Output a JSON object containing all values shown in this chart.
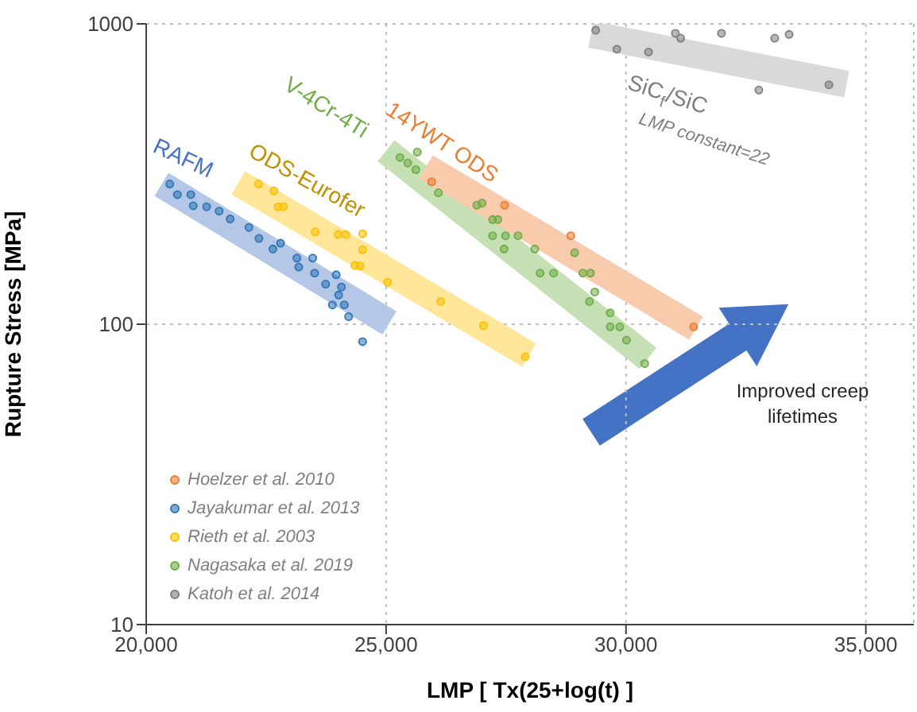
{
  "chart_data": {
    "type": "scatter",
    "xlabel": "LMP [ Tx(25+log(t) ]",
    "ylabel": "Rupture Stress [MPa]",
    "xlim": [
      20000,
      36000
    ],
    "xticks": [
      {
        "value": 20000,
        "label": "20,000"
      },
      {
        "value": 25000,
        "label": "25,000"
      },
      {
        "value": 30000,
        "label": "30,000"
      },
      {
        "value": 35000,
        "label": "35,000"
      }
    ],
    "ylim": [
      10,
      1000
    ],
    "yticks": [
      10,
      100,
      1000
    ],
    "log": "y",
    "grid": true,
    "legend": "bottom left",
    "marker": "circle",
    "series": [
      {
        "type": "line",
        "marker": "none",
        "color": "#b4c7e7",
        "x": [
          20320,
          25070
        ],
        "values": [
          292,
          101
        ]
      },
      {
        "type": "line",
        "marker": "none",
        "color": "#ffe699",
        "x": [
          21920,
          27980
        ],
        "values": [
          296,
          79
        ]
      },
      {
        "type": "line",
        "marker": "none",
        "color": "#c5e0b4",
        "x": [
          25000,
          30460
        ],
        "values": [
          378,
          77
        ]
      },
      {
        "type": "line",
        "marker": "none",
        "color": "#f8cbad",
        "x": [
          25830,
          31460
        ],
        "values": [
          334,
          97
        ]
      },
      {
        "type": "line",
        "marker": "none",
        "color": "#d9d9d9",
        "x": [
          29270,
          34600
        ],
        "values": [
          922,
          630
        ]
      },
      {
        "name": "Hoelzer et al. 2010",
        "color": "#ed7d31",
        "x": [
          25950,
          27470,
          28850,
          31410
        ],
        "values": [
          298,
          249,
          197,
          98
        ]
      },
      {
        "name": "Jayakumar et al. 2013",
        "color": "#2e75b6",
        "x": [
          20490,
          20650,
          20930,
          20980,
          21260,
          21520,
          21750,
          22140,
          22350,
          22640,
          22800,
          23140,
          23470,
          23180,
          23510,
          23960,
          23740,
          24070,
          24010,
          24130,
          23880,
          24220,
          24510
        ],
        "values": [
          293,
          270,
          270,
          248,
          246,
          238,
          224,
          210,
          193,
          178,
          186,
          166,
          166,
          155,
          148,
          146,
          136,
          133,
          125,
          116,
          116,
          106,
          87.5
        ]
      },
      {
        "name": "Rieth et al. 2003",
        "color": "#ffc000",
        "x": [
          22340,
          22660,
          22750,
          22860,
          23520,
          24000,
          24160,
          24510,
          24510,
          24350,
          24460,
          25030,
          26140,
          27030,
          27900
        ],
        "values": [
          293,
          278,
          246,
          246,
          203,
          199,
          199,
          200,
          177,
          157,
          156,
          138,
          119,
          99,
          78
        ]
      },
      {
        "name": "Nagasaka et al. 2019",
        "color": "#70ad47",
        "x": [
          25290,
          25450,
          25650,
          25620,
          26090,
          26890,
          27000,
          27220,
          27330,
          27220,
          27490,
          27750,
          27460,
          28100,
          28210,
          28490,
          28930,
          29100,
          29260,
          29350,
          29240,
          29670,
          29670,
          29870,
          30010,
          30390
        ],
        "values": [
          359,
          344,
          374,
          327,
          274,
          249,
          253,
          223,
          223,
          197,
          197,
          197,
          178,
          178,
          148,
          148,
          173,
          148,
          148,
          128,
          119,
          109,
          98,
          98,
          88.5,
          74
        ]
      },
      {
        "name": "Katoh et al. 2014",
        "color": "#7f7f7f",
        "x": [
          29370,
          29810,
          30470,
          31030,
          31140,
          31990,
          33100,
          33400,
          32770,
          34230
        ],
        "values": [
          952,
          823,
          806,
          930,
          896,
          930,
          896,
          922,
          602,
          627
        ]
      }
    ],
    "annotations": [
      "RAFM",
      "ODS-Eurofer",
      "V-4Cr-4Ti",
      "14YWT ODS",
      "SiC$_{f}$/SiC",
      "LMP constant=22",
      "Improved creep lifetimes"
    ]
  }
}
